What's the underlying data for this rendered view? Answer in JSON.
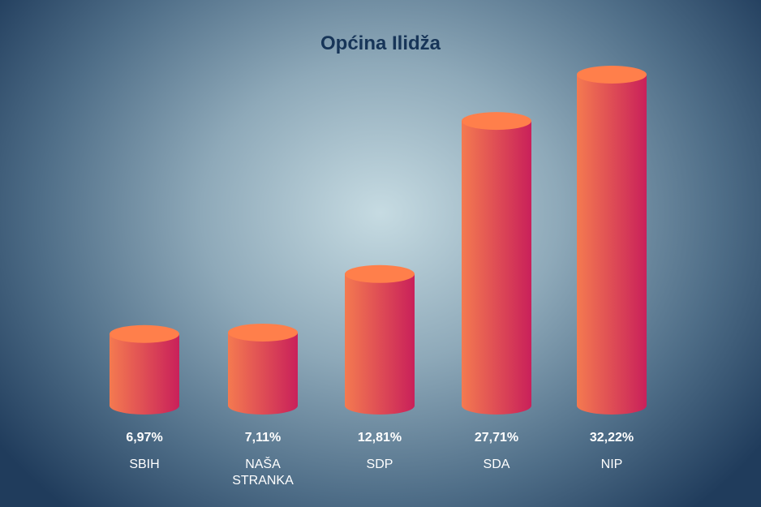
{
  "chart_data": {
    "type": "bar",
    "title": "Općina Ilidža",
    "categories": [
      [
        "SBIH"
      ],
      [
        "NAŠA",
        "STRANKA"
      ],
      [
        "SDP"
      ],
      [
        "SDA"
      ],
      [
        "NIP"
      ]
    ],
    "values": [
      6.97,
      7.11,
      12.81,
      27.71,
      32.22
    ],
    "value_labels": [
      "6,97%",
      "7,11%",
      "12,81%",
      "27,71%",
      "32,22%"
    ],
    "ylim": [
      0,
      32.22
    ],
    "grid": false,
    "xlabel": "",
    "ylabel": ""
  },
  "colors": {
    "bar_left": "#f47a50",
    "bar_right": "#c9205a",
    "bar_top": "#ff7f4b",
    "title": "#173558",
    "labels": "#ffffff"
  }
}
